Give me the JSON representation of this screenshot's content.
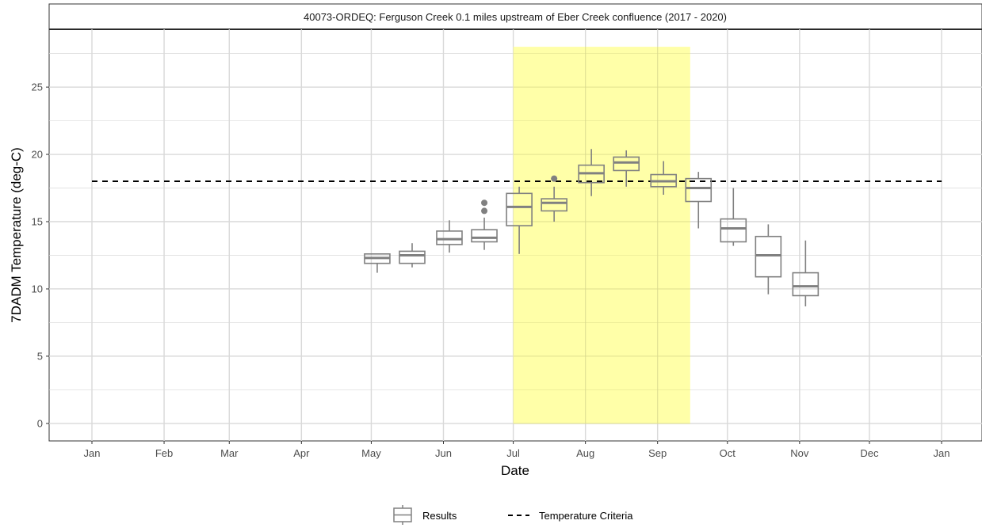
{
  "chart_data": {
    "type": "box",
    "title": "40073-ORDEQ: Ferguson Creek 0.1 miles upstream of Eber Creek confluence (2017 - 2020)",
    "xlabel": "Date",
    "ylabel": "7DADM Temperature (deg-C)",
    "ylim": [
      -1.3,
      29.3
    ],
    "yticks": [
      0,
      5,
      10,
      15,
      20,
      25
    ],
    "x_tick_labels": [
      "Jan",
      "Feb",
      "Mar",
      "Apr",
      "May",
      "Jun",
      "Jul",
      "Aug",
      "Sep",
      "Oct",
      "Nov",
      "Dec",
      "Jan"
    ],
    "grid": true,
    "legend_position": "bottom",
    "colors": {
      "box": "#808080",
      "highlight": "#ffff99",
      "criteria": "#000000",
      "grid": "#d9d9d9"
    },
    "highlight_period": {
      "start": "Jul 1",
      "end": "Sep 15",
      "ymax": 28
    },
    "criteria": {
      "name": "Temperature Criteria",
      "value": 18,
      "from": "Jan 1",
      "to": "Dec 31"
    },
    "series": [
      {
        "name": "Results",
        "boxes": [
          {
            "x": "May 1",
            "whisker_low": 11.2,
            "q1": 11.9,
            "median": 12.3,
            "q3": 12.6,
            "whisker_high": 12.6,
            "outliers": []
          },
          {
            "x": "May 16",
            "whisker_low": 11.6,
            "q1": 11.9,
            "median": 12.5,
            "q3": 12.8,
            "whisker_high": 13.4,
            "outliers": []
          },
          {
            "x": "Jun 1",
            "whisker_low": 12.7,
            "q1": 13.3,
            "median": 13.7,
            "q3": 14.3,
            "whisker_high": 15.1,
            "outliers": []
          },
          {
            "x": "Jun 16",
            "whisker_low": 12.9,
            "q1": 13.5,
            "median": 13.8,
            "q3": 14.4,
            "whisker_high": 15.3,
            "outliers": [
              15.8,
              16.4
            ]
          },
          {
            "x": "Jul 1",
            "whisker_low": 12.6,
            "q1": 14.7,
            "median": 16.1,
            "q3": 17.1,
            "whisker_high": 17.6,
            "outliers": []
          },
          {
            "x": "Jul 16",
            "whisker_low": 15.0,
            "q1": 15.8,
            "median": 16.4,
            "q3": 16.7,
            "whisker_high": 17.6,
            "outliers": [
              18.2
            ]
          },
          {
            "x": "Aug 1",
            "whisker_low": 16.9,
            "q1": 17.9,
            "median": 18.6,
            "q3": 19.2,
            "whisker_high": 20.4,
            "outliers": []
          },
          {
            "x": "Aug 16",
            "whisker_low": 17.6,
            "q1": 18.8,
            "median": 19.4,
            "q3": 19.8,
            "whisker_high": 20.3,
            "outliers": []
          },
          {
            "x": "Sep 1",
            "whisker_low": 17.0,
            "q1": 17.6,
            "median": 18.0,
            "q3": 18.5,
            "whisker_high": 19.5,
            "outliers": []
          },
          {
            "x": "Sep 16",
            "whisker_low": 14.5,
            "q1": 16.5,
            "median": 17.5,
            "q3": 18.2,
            "whisker_high": 18.7,
            "outliers": []
          },
          {
            "x": "Oct 1",
            "whisker_low": 13.2,
            "q1": 13.5,
            "median": 14.5,
            "q3": 15.2,
            "whisker_high": 17.5,
            "outliers": []
          },
          {
            "x": "Oct 16",
            "whisker_low": 9.6,
            "q1": 10.9,
            "median": 12.5,
            "q3": 13.9,
            "whisker_high": 14.8,
            "outliers": []
          },
          {
            "x": "Nov 1",
            "whisker_low": 8.7,
            "q1": 9.5,
            "median": 10.2,
            "q3": 11.2,
            "whisker_high": 13.6,
            "outliers": []
          }
        ]
      }
    ],
    "legend": [
      {
        "label": "Results",
        "symbol": "box"
      },
      {
        "label": "Temperature Criteria",
        "symbol": "dashed-line"
      }
    ]
  }
}
